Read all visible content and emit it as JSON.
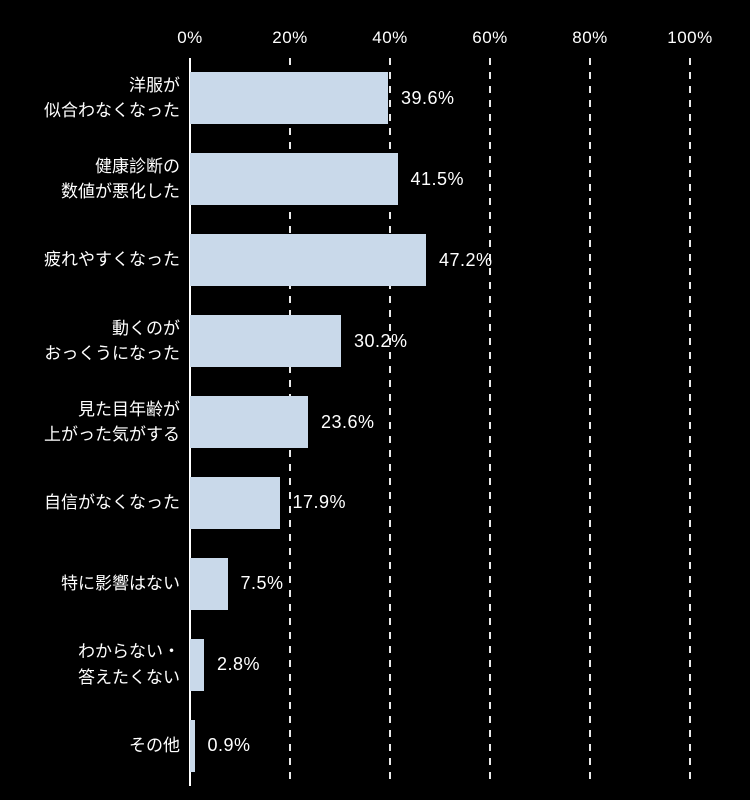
{
  "chart_data": {
    "type": "bar",
    "orientation": "horizontal",
    "title": "",
    "categories": [
      [
        "洋服が",
        "似合わなくなった"
      ],
      [
        "健康診断の",
        "数値が悪化した"
      ],
      [
        "疲れやすくなった"
      ],
      [
        "動くのが",
        "おっくうになった"
      ],
      [
        "見た目年齢が",
        "上がった気がする"
      ],
      [
        "自信がなくなった"
      ],
      [
        "特に影響はない"
      ],
      [
        "わからない・",
        "答えたくない"
      ],
      [
        "その他"
      ]
    ],
    "values": [
      39.6,
      41.5,
      47.2,
      30.2,
      23.6,
      17.9,
      7.5,
      2.8,
      0.9
    ],
    "value_labels": [
      "39.6%",
      "41.5%",
      "47.2%",
      "30.2%",
      "23.6%",
      "17.9%",
      "7.5%",
      "2.8%",
      "0.9%"
    ],
    "x_ticks": [
      "0%",
      "20%",
      "40%",
      "60%",
      "80%",
      "100%"
    ],
    "xlim": [
      0,
      100
    ],
    "grid": "vertical-dashed",
    "legend": "none",
    "colors": {
      "bar": "#c9d9ea",
      "text": "#ffffff",
      "background": "#000000",
      "gridline": "#ffffff"
    }
  }
}
